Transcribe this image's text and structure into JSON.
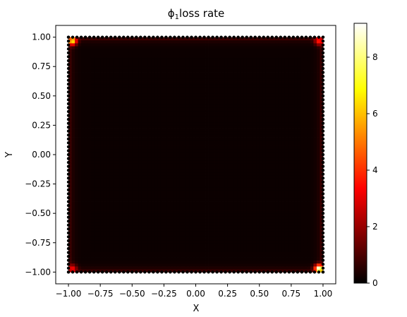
{
  "chart_data": {
    "type": "heatmap",
    "title": {
      "symbol": "ϕ",
      "subscript": "1",
      "text": "loss rate"
    },
    "xlabel": "X",
    "ylabel": "Y",
    "xlim": [
      -1.1,
      1.1
    ],
    "ylim": [
      -1.1,
      1.1
    ],
    "data_extent": {
      "x": [
        -1.0,
        1.0
      ],
      "y": [
        -1.0,
        1.0
      ]
    },
    "x_ticks": [
      -1.0,
      -0.75,
      -0.5,
      -0.25,
      0.0,
      0.25,
      0.5,
      0.75,
      1.0
    ],
    "x_tick_labels": [
      "−1.00",
      "−0.75",
      "−0.50",
      "−0.25",
      "0.00",
      "0.25",
      "0.50",
      "0.75",
      "1.00"
    ],
    "y_ticks": [
      1.0,
      0.75,
      0.5,
      0.25,
      0.0,
      -0.25,
      -0.5,
      -0.75,
      -1.0
    ],
    "y_tick_labels": [
      "1.00",
      "0.75",
      "0.50",
      "0.25",
      "0.00",
      "−0.25",
      "−0.50",
      "−0.75",
      "−1.00"
    ],
    "colormap": "hot",
    "colorbar": {
      "vmin": 0,
      "vmax": 9.2,
      "ticks": [
        0,
        2,
        4,
        6,
        8
      ],
      "tick_labels": [
        "0",
        "2",
        "4",
        "6",
        "8"
      ]
    },
    "hotspots": [
      {
        "x": 0.97,
        "y": -0.97,
        "value": 9.2
      },
      {
        "x": -0.97,
        "y": 0.97,
        "value": 6.5
      },
      {
        "x": 0.97,
        "y": 0.97,
        "value": 3.5
      },
      {
        "x": -0.97,
        "y": -0.97,
        "value": 3.0
      }
    ],
    "edge_value": 1.0,
    "interior_value": 0.15,
    "grid": false,
    "legend": "none"
  }
}
